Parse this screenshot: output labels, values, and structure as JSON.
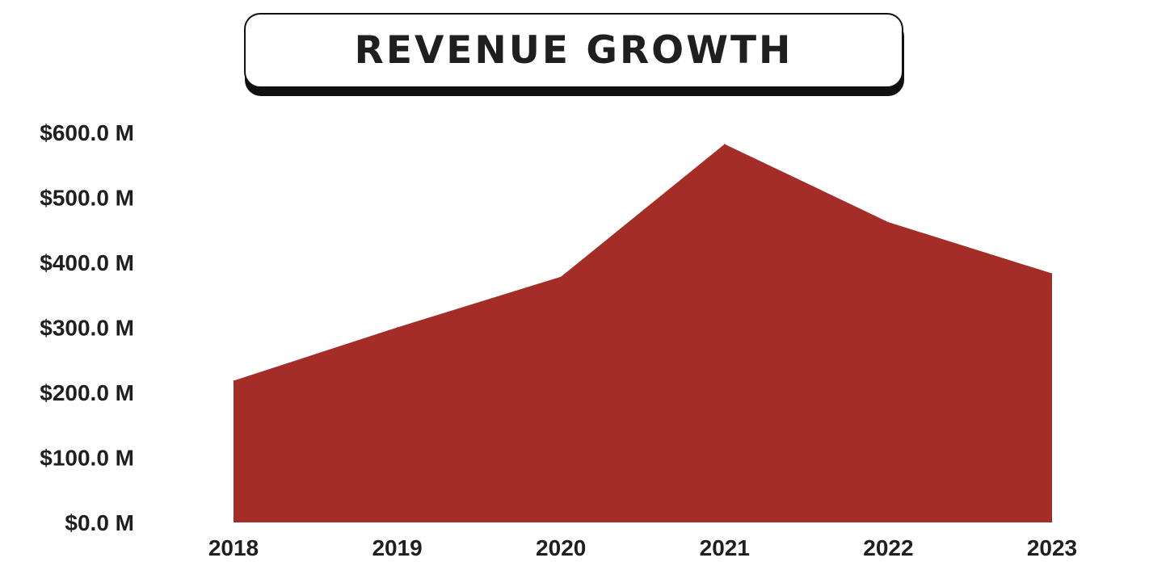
{
  "chart_data": {
    "type": "area",
    "title": "REVENUE GROWTH",
    "x": [
      "2018",
      "2019",
      "2020",
      "2021",
      "2022",
      "2023"
    ],
    "series": [
      {
        "values": [
          218,
          300,
          378,
          582,
          462,
          383
        ]
      }
    ],
    "ylim": [
      0,
      600
    ],
    "yticks": [
      0,
      100,
      200,
      300,
      400,
      500,
      600
    ],
    "ytick_labels": [
      "$0.0 M",
      "$100.0 M",
      "$200.0 M",
      "$300.0 M",
      "$400.0 M",
      "$500.0 M",
      "$600.0 M"
    ],
    "xlabel": "",
    "ylabel": "",
    "grid": false,
    "area_color": "#a52d27",
    "text_color": "#1f1f1f"
  }
}
